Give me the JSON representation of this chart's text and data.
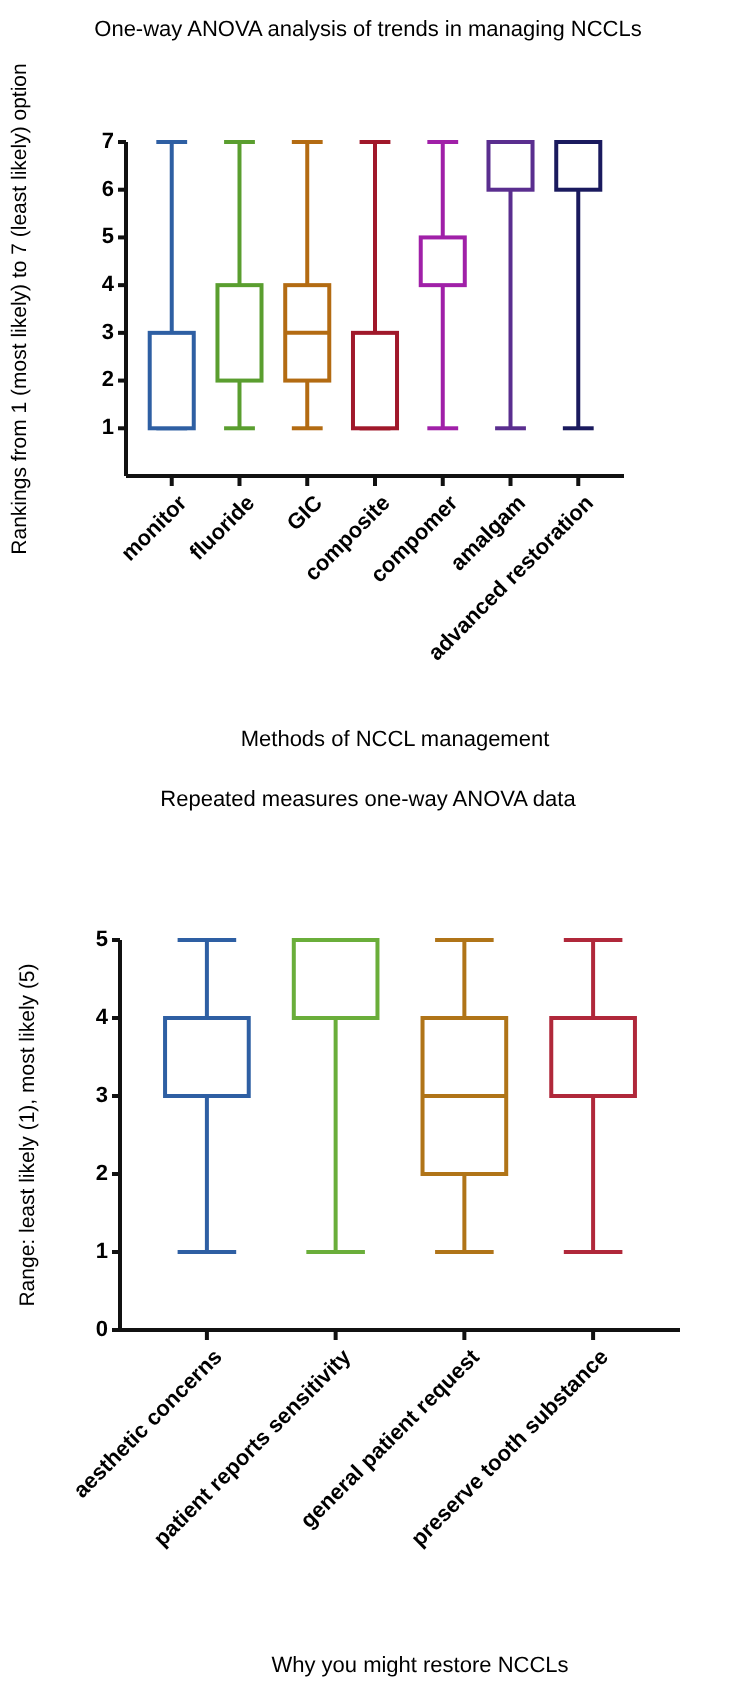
{
  "chart_data": [
    {
      "type": "box",
      "title": "One-way ANOVA analysis of trends in managing NCCLs",
      "xlabel": "Methods of NCCL management",
      "ylabel": "Rankings from 1 (most likely) to 7 (least likely) option",
      "categories": [
        "monitor",
        "fluoride",
        "GIC",
        "composite",
        "compomer",
        "amalgam",
        "advanced restoration"
      ],
      "boxes": [
        {
          "low": 1,
          "q1": 1,
          "median": 1,
          "q3": 3,
          "high": 7
        },
        {
          "low": 1,
          "q1": 2,
          "median": 2,
          "q3": 4,
          "high": 7
        },
        {
          "low": 1,
          "q1": 2,
          "median": 3,
          "q3": 4,
          "high": 7
        },
        {
          "low": 1,
          "q1": 1,
          "median": 1,
          "q3": 3,
          "high": 7
        },
        {
          "low": 1,
          "q1": 4,
          "median": 4,
          "q3": 5,
          "high": 7
        },
        {
          "low": 1,
          "q1": 6,
          "median": 6,
          "q3": 7,
          "high": 7
        },
        {
          "low": 1,
          "q1": 6,
          "median": 6,
          "q3": 7,
          "high": 7
        }
      ],
      "colors": [
        "#2e5fa3",
        "#5a9e2f",
        "#b36b12",
        "#a0182a",
        "#a020a8",
        "#5a2e8f",
        "#1a1a5e"
      ],
      "ylim": [
        0,
        7
      ],
      "yticks": [
        1,
        2,
        3,
        4,
        5,
        6,
        7
      ]
    },
    {
      "type": "box",
      "title": "Repeated measures one-way ANOVA data",
      "xlabel": "Why you might restore NCCLs",
      "ylabel": "Range: least likely (1), most likely (5)",
      "categories": [
        "aesthetic concerns",
        "patient reports sensitivity",
        "general patient request",
        "preserve tooth substance"
      ],
      "boxes": [
        {
          "low": 1,
          "q1": 3,
          "median": 3,
          "q3": 4,
          "high": 5
        },
        {
          "low": 1,
          "q1": 4,
          "median": 4,
          "q3": 5,
          "high": 5
        },
        {
          "low": 1,
          "q1": 2,
          "median": 3,
          "q3": 4,
          "high": 5
        },
        {
          "low": 1,
          "q1": 3,
          "median": 3,
          "q3": 4,
          "high": 5
        }
      ],
      "colors": [
        "#2e5fa3",
        "#6aae3a",
        "#b07418",
        "#b0283a"
      ],
      "ylim": [
        0,
        5
      ],
      "yticks": [
        0,
        1,
        2,
        3,
        4,
        5
      ]
    }
  ]
}
